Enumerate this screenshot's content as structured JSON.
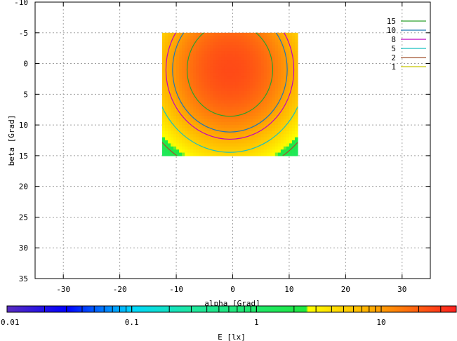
{
  "chart_data": {
    "type": "heatmap",
    "xlabel": "alpha [Grad]",
    "ylabel": "beta [Grad]",
    "xlim": [
      -35,
      35
    ],
    "ylim": [
      -10,
      35
    ],
    "y_inverted": true,
    "x_ticks": [
      "-30",
      "-20",
      "-10",
      "0",
      "10",
      "20",
      "30"
    ],
    "y_ticks": [
      "-10",
      "-5",
      "0",
      "5",
      "10",
      "15",
      "20",
      "25",
      "30",
      "35"
    ],
    "grid": true,
    "data_extent": {
      "alpha": [
        -12.5,
        11.5
      ],
      "beta": [
        -5,
        15
      ]
    },
    "peak": {
      "alpha": -0.5,
      "beta": 1,
      "value": 25
    },
    "contour_legend_placement": "top-right",
    "contours": [
      {
        "label": "15",
        "value": 15,
        "color": "#2ca02c"
      },
      {
        "label": "10",
        "value": 10,
        "color": "#1f77b4"
      },
      {
        "label": "8",
        "value": 8,
        "color": "#c000c0"
      },
      {
        "label": "5",
        "value": 5,
        "color": "#19c0c0"
      },
      {
        "label": "2",
        "value": 2,
        "color": "#a0522d"
      },
      {
        "label": "1",
        "value": 1,
        "color": "#c8c800"
      }
    ],
    "colorbar": {
      "label": "E [lx]",
      "scale": "log",
      "range": [
        0.01,
        40
      ],
      "tick_labels": [
        {
          "value": 0.01,
          "label": "0.01"
        },
        {
          "value": 0.1,
          "label": "0.1"
        },
        {
          "value": 1,
          "label": "1"
        },
        {
          "value": 10,
          "label": "10"
        }
      ],
      "color_stops": [
        {
          "value": 0.01,
          "color": "#5a2dc0"
        },
        {
          "value": 0.03,
          "color": "#0000ff"
        },
        {
          "value": 0.1,
          "color": "#00d8ff"
        },
        {
          "value": 0.3,
          "color": "#20e8a0"
        },
        {
          "value": 2.5,
          "color": "#20e840"
        },
        {
          "value": 2.6,
          "color": "#ffff00"
        },
        {
          "value": 8,
          "color": "#ffb000"
        },
        {
          "value": 40,
          "color": "#ff2020"
        }
      ]
    }
  }
}
